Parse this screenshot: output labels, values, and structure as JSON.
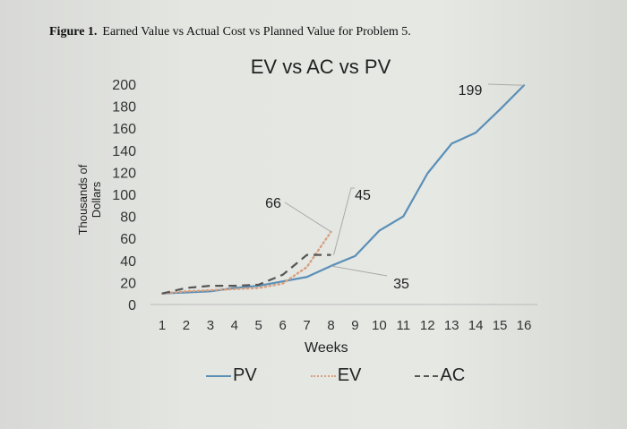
{
  "caption": {
    "figure_label": "Figure 1.",
    "text": "Earned Value vs Actual Cost vs Planned Value for Problem 5."
  },
  "chart_data": {
    "type": "line",
    "title": "EV vs AC vs PV",
    "xlabel": "Weeks",
    "ylabel": "Thousands of Dollars",
    "x": [
      1,
      2,
      3,
      4,
      5,
      6,
      7,
      8,
      9,
      10,
      11,
      12,
      13,
      14,
      15,
      16
    ],
    "y_ticks": [
      0,
      20,
      40,
      60,
      80,
      100,
      120,
      140,
      160,
      180,
      200
    ],
    "ylim": [
      0,
      200
    ],
    "grid": false,
    "legend_position": "bottom",
    "series": [
      {
        "name": "PV",
        "style": "solid",
        "color": "#5a8fb6",
        "values": [
          10,
          11,
          12,
          15,
          17,
          21,
          25,
          35,
          44,
          67,
          80,
          119,
          146,
          156,
          177,
          199
        ]
      },
      {
        "name": "EV",
        "style": "dotted",
        "color": "#d6a080",
        "values": [
          10,
          12,
          13,
          14,
          15,
          19,
          34,
          66
        ]
      },
      {
        "name": "AC",
        "style": "dashed",
        "color": "#555555",
        "values": [
          10,
          15,
          17,
          17,
          18,
          27,
          45,
          45
        ]
      }
    ],
    "annotations": [
      {
        "series": "EV",
        "week": 8,
        "label": "66"
      },
      {
        "series": "AC",
        "week": 8,
        "label": "45"
      },
      {
        "series": "PV",
        "week": 8,
        "label": "35"
      },
      {
        "series": "PV",
        "week": 16,
        "label": "199"
      }
    ]
  },
  "legend": [
    {
      "label": "PV",
      "style": "solid"
    },
    {
      "label": "EV",
      "style": "dotted"
    },
    {
      "label": "AC",
      "style": "dashed"
    }
  ]
}
